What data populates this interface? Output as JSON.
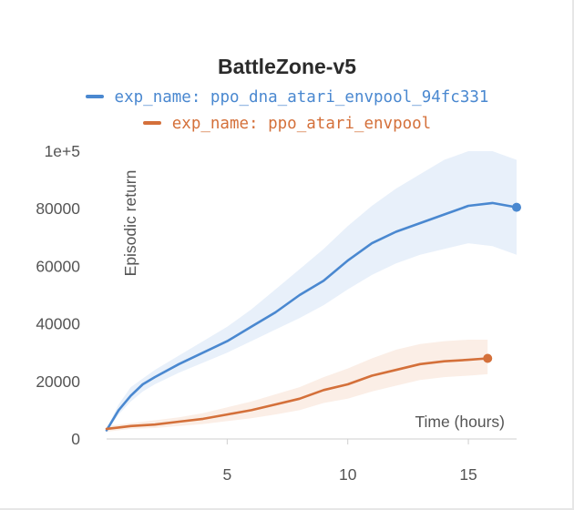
{
  "chart_data": {
    "type": "line",
    "title": "BattleZone-v5",
    "xlabel": "Time (hours)",
    "ylabel": "Episodic return",
    "xlim": [
      0,
      17
    ],
    "ylim": [
      0,
      100000
    ],
    "x_ticks": [
      5,
      10,
      15
    ],
    "x_tick_labels": [
      "5",
      "10",
      "15"
    ],
    "y_ticks": [
      0,
      20000,
      40000,
      60000,
      80000,
      100000
    ],
    "y_tick_labels": [
      "0",
      "20000",
      "40000",
      "60000",
      "80000",
      "1e+5"
    ],
    "grid": false,
    "legend_position": "top",
    "series": [
      {
        "name": "exp_name: ppo_dna_atari_envpool_94fc331",
        "color": "#4a88d0",
        "band_color": "#e8f0fa",
        "x": [
          0,
          0.5,
          1,
          1.5,
          2,
          3,
          4,
          5,
          6,
          7,
          8,
          9,
          10,
          11,
          12,
          13,
          14,
          15,
          16,
          17
        ],
        "values": [
          3000,
          10000,
          15000,
          19000,
          21500,
          26000,
          30000,
          34000,
          39000,
          44000,
          50000,
          55000,
          62000,
          68000,
          72000,
          75000,
          78000,
          81000,
          82000,
          80500
        ],
        "band_upper": [
          3500,
          12000,
          18000,
          21000,
          24000,
          29000,
          34000,
          39000,
          45000,
          52000,
          59000,
          66000,
          74000,
          81000,
          87000,
          92000,
          97000,
          100000,
          100000,
          97000
        ],
        "band_lower": [
          2500,
          8500,
          13000,
          16500,
          19000,
          23000,
          26500,
          30000,
          34000,
          38000,
          42000,
          46500,
          52000,
          57000,
          61000,
          64000,
          66000,
          68000,
          67000,
          64000
        ]
      },
      {
        "name": "exp_name: ppo_atari_envpool",
        "color": "#d4703a",
        "band_color": "#fbeee6",
        "x": [
          0,
          0.5,
          1,
          2,
          3,
          4,
          5,
          6,
          7,
          8,
          9,
          10,
          11,
          12,
          13,
          14,
          15,
          15.8
        ],
        "values": [
          3500,
          4000,
          4500,
          5000,
          6000,
          7000,
          8500,
          10000,
          12000,
          14000,
          17000,
          19000,
          22000,
          24000,
          26000,
          27000,
          27500,
          28000
        ],
        "band_upper": [
          4500,
          5000,
          5500,
          6500,
          7500,
          9000,
          11000,
          13000,
          15500,
          18000,
          21500,
          24500,
          28000,
          31000,
          33000,
          34000,
          34500,
          34500
        ],
        "band_lower": [
          2500,
          3000,
          3500,
          3800,
          4500,
          5200,
          6200,
          7200,
          8500,
          10000,
          12500,
          14000,
          16500,
          18500,
          20500,
          21500,
          22000,
          22500
        ]
      }
    ]
  }
}
